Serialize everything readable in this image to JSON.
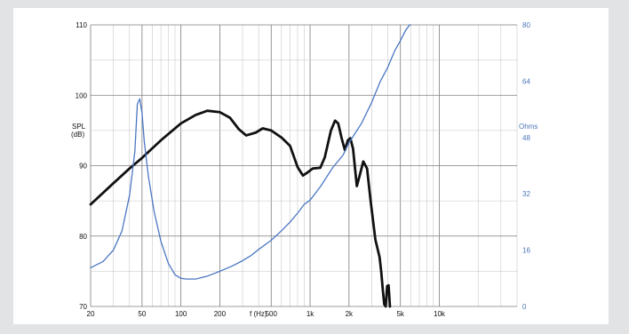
{
  "chart_data": {
    "type": "line",
    "title": "",
    "xlabel": "f (Hz)",
    "ylabel_left": "SPL\n(dB)",
    "ylabel_right": "Ohms",
    "x_scale": "log",
    "xlim": [
      20,
      40000
    ],
    "ylim_left": [
      70,
      110
    ],
    "ylim_right": [
      0,
      80
    ],
    "grid": true,
    "x_ticks": [
      {
        "value": 20,
        "label": "20"
      },
      {
        "value": 50,
        "label": "50"
      },
      {
        "value": 100,
        "label": "100"
      },
      {
        "value": 200,
        "label": "200"
      },
      {
        "value": 500,
        "label": "500"
      },
      {
        "value": 1000,
        "label": "1k"
      },
      {
        "value": 2000,
        "label": "2k"
      },
      {
        "value": 5000,
        "label": "5k"
      },
      {
        "value": 10000,
        "label": "10k"
      }
    ],
    "y_ticks_left": [
      {
        "value": 70,
        "label": "70"
      },
      {
        "value": 80,
        "label": "80"
      },
      {
        "value": 90,
        "label": "90"
      },
      {
        "value": 100,
        "label": "100"
      },
      {
        "value": 110,
        "label": "110"
      }
    ],
    "y_ticks_right": [
      {
        "value": 0,
        "label": "0"
      },
      {
        "value": 16,
        "label": "16"
      },
      {
        "value": 32,
        "label": "32"
      },
      {
        "value": 48,
        "label": "48"
      },
      {
        "value": 64,
        "label": "64"
      },
      {
        "value": 80,
        "label": "80"
      }
    ],
    "series": [
      {
        "color": "#111111",
        "axis": "left",
        "points": [
          [
            20,
            84.5
          ],
          [
            30,
            87.5
          ],
          [
            40,
            89.6
          ],
          [
            50,
            91.1
          ],
          [
            70,
            93.6
          ],
          [
            100,
            96.0
          ],
          [
            130,
            97.2
          ],
          [
            160,
            97.8
          ],
          [
            200,
            97.6
          ],
          [
            240,
            96.8
          ],
          [
            280,
            95.2
          ],
          [
            320,
            94.3
          ],
          [
            380,
            94.7
          ],
          [
            430,
            95.3
          ],
          [
            500,
            95.0
          ],
          [
            600,
            94.0
          ],
          [
            700,
            92.8
          ],
          [
            800,
            89.8
          ],
          [
            880,
            88.6
          ],
          [
            950,
            89.0
          ],
          [
            1050,
            89.6
          ],
          [
            1200,
            89.7
          ],
          [
            1300,
            91.2
          ],
          [
            1450,
            95.0
          ],
          [
            1560,
            96.4
          ],
          [
            1650,
            96.0
          ],
          [
            1760,
            93.8
          ],
          [
            1860,
            92.2
          ],
          [
            1960,
            93.6
          ],
          [
            2050,
            93.9
          ],
          [
            2150,
            92.4
          ],
          [
            2300,
            87.1
          ],
          [
            2420,
            88.6
          ],
          [
            2580,
            90.6
          ],
          [
            2760,
            89.6
          ],
          [
            2950,
            84.8
          ],
          [
            3200,
            79.5
          ],
          [
            3450,
            77.0
          ],
          [
            3550,
            75.0
          ],
          [
            3650,
            72.5
          ],
          [
            3750,
            70.3
          ],
          [
            3850,
            70.0
          ],
          [
            3950,
            72.9
          ],
          [
            4050,
            73.0
          ],
          [
            4150,
            70.0
          ]
        ]
      },
      {
        "color": "#4b77c4",
        "axis": "right",
        "points": [
          [
            20,
            11.0
          ],
          [
            25,
            12.8
          ],
          [
            30,
            16.0
          ],
          [
            35,
            21.5
          ],
          [
            40,
            31.5
          ],
          [
            44,
            44.0
          ],
          [
            46,
            57.5
          ],
          [
            48,
            59.0
          ],
          [
            50,
            55.0
          ],
          [
            52,
            47.0
          ],
          [
            56,
            37.0
          ],
          [
            62,
            27.0
          ],
          [
            70,
            18.5
          ],
          [
            80,
            12.2
          ],
          [
            90,
            9.0
          ],
          [
            100,
            8.0
          ],
          [
            110,
            7.8
          ],
          [
            130,
            7.8
          ],
          [
            160,
            8.6
          ],
          [
            200,
            10.0
          ],
          [
            250,
            11.5
          ],
          [
            300,
            13.0
          ],
          [
            350,
            14.5
          ],
          [
            400,
            16.2
          ],
          [
            500,
            18.8
          ],
          [
            600,
            21.5
          ],
          [
            700,
            24.0
          ],
          [
            800,
            26.5
          ],
          [
            900,
            29.0
          ],
          [
            1000,
            30.2
          ],
          [
            1200,
            34.0
          ],
          [
            1500,
            39.5
          ],
          [
            1800,
            43.0
          ],
          [
            2000,
            46.5
          ],
          [
            2500,
            52.0
          ],
          [
            3000,
            58.0
          ],
          [
            3500,
            64.0
          ],
          [
            4000,
            68.0
          ],
          [
            4500,
            72.5
          ],
          [
            5000,
            75.5
          ],
          [
            5500,
            78.5
          ],
          [
            5900,
            80.0
          ],
          [
            6000,
            80.0
          ]
        ]
      }
    ]
  }
}
